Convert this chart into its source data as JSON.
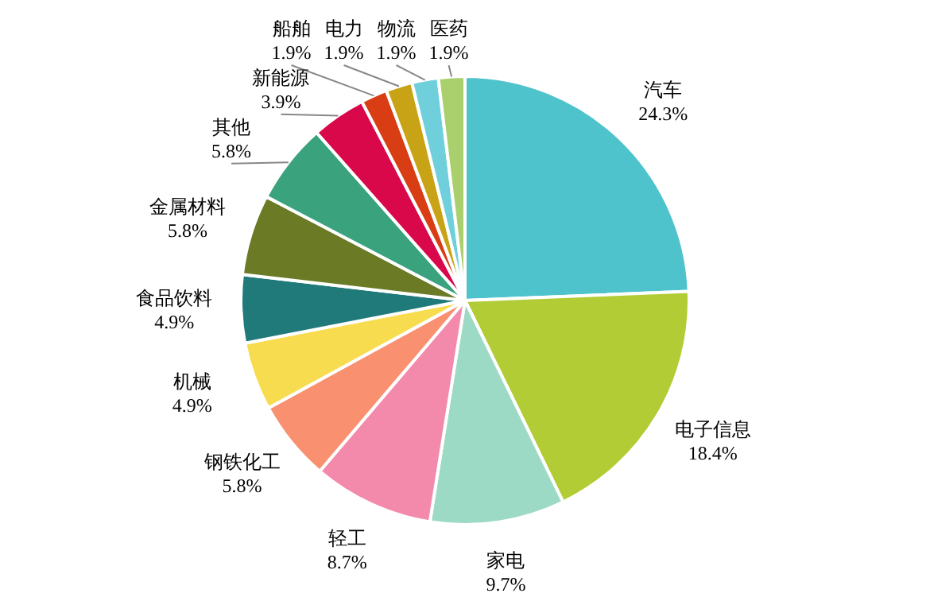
{
  "chart_data": {
    "type": "pie",
    "categories": [
      "汽车",
      "电子信息",
      "家电",
      "轻工",
      "钢铁化工",
      "机械",
      "食品饮料",
      "金属材料",
      "其他",
      "新能源",
      "船舶",
      "电力",
      "物流",
      "医药"
    ],
    "values": [
      24.3,
      18.4,
      9.7,
      8.7,
      5.8,
      4.9,
      4.9,
      5.8,
      5.8,
      3.9,
      1.9,
      1.9,
      1.9,
      1.9
    ],
    "value_labels": [
      "24.3%",
      "18.4%",
      "9.7%",
      "8.7%",
      "5.8%",
      "4.9%",
      "4.9%",
      "5.8%",
      "5.8%",
      "3.9%",
      "1.9%",
      "1.9%",
      "1.9%",
      "1.9%"
    ],
    "colors": [
      "#4fc3cc",
      "#b2cc35",
      "#9ddac6",
      "#f48aab",
      "#f99070",
      "#f7dc4f",
      "#217a7a",
      "#6b7a25",
      "#3aa37e",
      "#d9084a",
      "#d93d14",
      "#c9a316",
      "#6fd0dc",
      "#a9d06c"
    ],
    "legend": false
  }
}
